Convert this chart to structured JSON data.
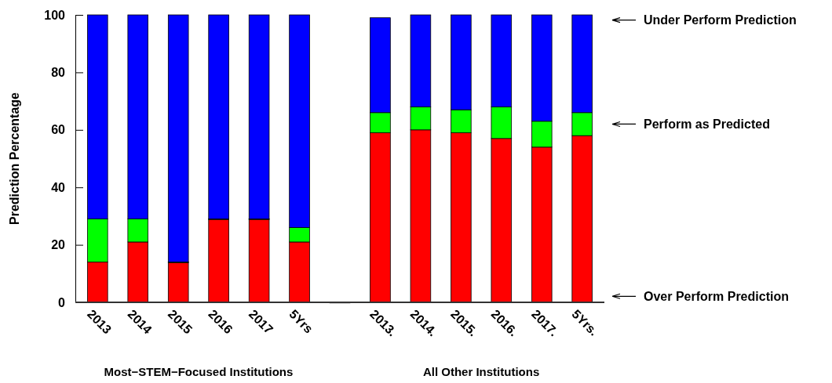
{
  "chart_data": {
    "type": "bar",
    "stacked": true,
    "ylabel": "Prediction Percentage",
    "categories": [
      "2013",
      "2014",
      "2015",
      "2016",
      "2017",
      "5Yrs",
      null,
      "2013.",
      "2014.",
      "2015.",
      "2016.",
      "2017.",
      "5Yrs."
    ],
    "series": [
      {
        "color": "#ff0000",
        "values": [
          14,
          21,
          14,
          29,
          29,
          21,
          0,
          59,
          60,
          59,
          57,
          54,
          58
        ]
      },
      {
        "color": "#00ff00",
        "values": [
          15,
          8,
          0,
          0,
          0,
          5,
          null,
          7,
          8,
          8,
          11,
          9,
          8
        ]
      },
      {
        "color": "#0000ff",
        "values": [
          71,
          71,
          86,
          71,
          71,
          74,
          null,
          33,
          32,
          33,
          32,
          37,
          34
        ]
      }
    ],
    "ylim": [
      0,
      100
    ],
    "yticks": [
      0,
      20,
      40,
      60,
      80,
      100
    ],
    "grid": false,
    "annotations": [
      "Under Perform Prediction",
      "Perform as Predicted",
      "Over Perform Prediction",
      "Most−STEM−Focused Institutions",
      "All Other Institutions"
    ]
  }
}
